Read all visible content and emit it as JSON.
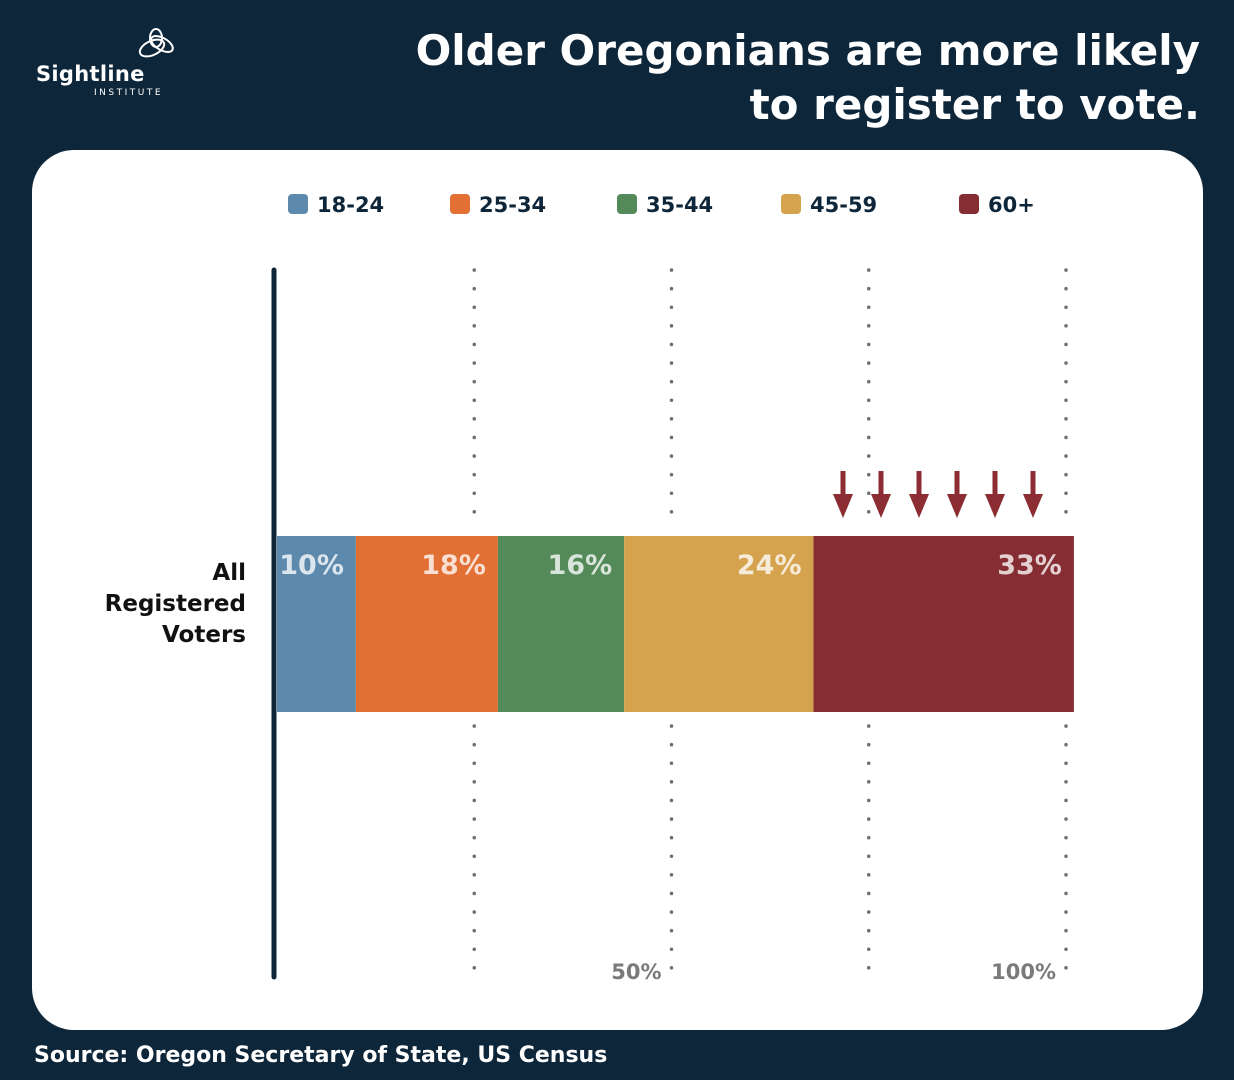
{
  "header": {
    "logo_name": "Sightline",
    "logo_sub": "INSTITUTE",
    "title_line1": "Older Oregonians are more likely",
    "title_line2": "to register to vote."
  },
  "footer": {
    "source": "Source: Oregon Secretary of State, US Census"
  },
  "colors": {
    "background": "#0e263a",
    "axis": "#0e263a",
    "gridline": "#6f6f6f",
    "arrow": "#8b2d33"
  },
  "chart_data": {
    "type": "bar",
    "orientation": "horizontal",
    "stacked": true,
    "categories": [
      "All Registered Voters"
    ],
    "category_lines": [
      "All",
      "Registered",
      "Voters"
    ],
    "series": [
      {
        "name": "18-24",
        "values": [
          10
        ],
        "label": "10%",
        "color": "#5d89ad"
      },
      {
        "name": "25-34",
        "values": [
          18
        ],
        "label": "18%",
        "color": "#e27035"
      },
      {
        "name": "35-44",
        "values": [
          16
        ],
        "label": "16%",
        "color": "#548a59"
      },
      {
        "name": "45-59",
        "values": [
          24
        ],
        "label": "24%",
        "color": "#d5a24d"
      },
      {
        "name": "60+",
        "values": [
          33
        ],
        "label": "33%",
        "color": "#862d33"
      }
    ],
    "xlim": [
      0,
      100
    ],
    "gridlines": [
      25,
      50,
      75,
      100
    ],
    "tick_labels": [
      {
        "value": 50,
        "label": "50%"
      },
      {
        "value": 100,
        "label": "100%"
      }
    ],
    "legend_position": "top",
    "annotation": {
      "type": "down-arrows",
      "count": 6,
      "over_series": "60+"
    }
  }
}
